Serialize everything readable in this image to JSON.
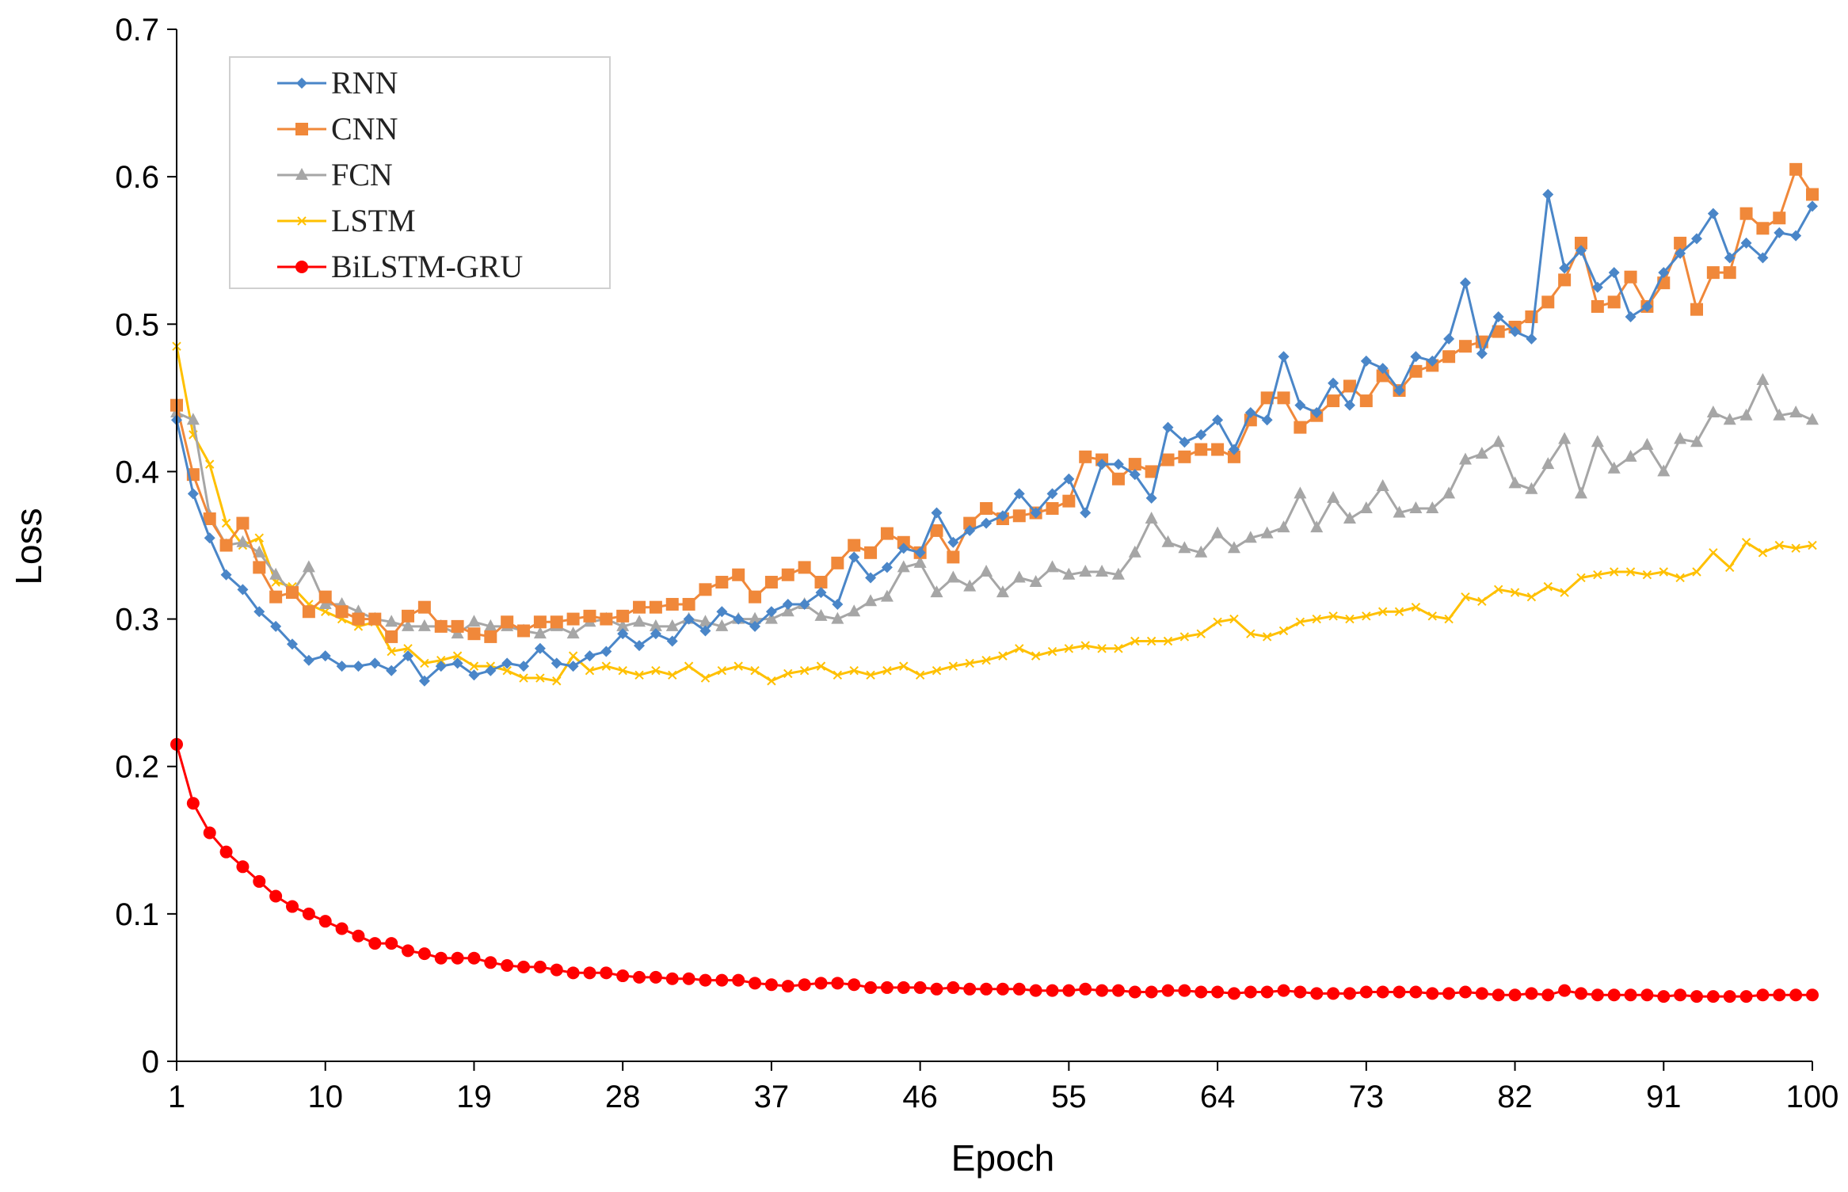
{
  "chart_data": {
    "type": "line",
    "title": "",
    "xlabel": "Epoch",
    "ylabel": "Loss",
    "xlim": [
      1,
      100
    ],
    "ylim": [
      0,
      0.7
    ],
    "x_ticks": [
      1,
      10,
      19,
      28,
      37,
      46,
      55,
      64,
      73,
      82,
      91,
      100
    ],
    "y_ticks": [
      0,
      0.1,
      0.2,
      0.3,
      0.4,
      0.5,
      0.6,
      0.7
    ],
    "y_tick_labels": [
      "0",
      "0.1",
      "0.2",
      "0.3",
      "0.4",
      "0.5",
      "0.6",
      "0.7"
    ],
    "legend_position": "top-left",
    "grid": false,
    "series": [
      {
        "name": "RNN",
        "color": "#4A86C8",
        "marker": "diamond",
        "values": [
          0.435,
          0.385,
          0.355,
          0.33,
          0.32,
          0.305,
          0.295,
          0.283,
          0.272,
          0.275,
          0.268,
          0.268,
          0.27,
          0.265,
          0.275,
          0.258,
          0.268,
          0.27,
          0.262,
          0.265,
          0.27,
          0.268,
          0.28,
          0.27,
          0.268,
          0.275,
          0.278,
          0.29,
          0.282,
          0.29,
          0.285,
          0.3,
          0.292,
          0.305,
          0.3,
          0.295,
          0.305,
          0.31,
          0.31,
          0.318,
          0.31,
          0.342,
          0.328,
          0.335,
          0.348,
          0.345,
          0.372,
          0.352,
          0.36,
          0.365,
          0.37,
          0.385,
          0.372,
          0.385,
          0.395,
          0.372,
          0.405,
          0.405,
          0.398,
          0.382,
          0.43,
          0.42,
          0.425,
          0.435,
          0.415,
          0.44,
          0.435,
          0.478,
          0.445,
          0.44,
          0.46,
          0.445,
          0.475,
          0.47,
          0.455,
          0.478,
          0.475,
          0.49,
          0.528,
          0.48,
          0.505,
          0.495,
          0.49,
          0.588,
          0.538,
          0.55,
          0.525,
          0.535,
          0.505,
          0.512,
          0.535,
          0.548,
          0.558,
          0.575,
          0.545,
          0.555,
          0.545,
          0.562,
          0.56,
          0.58
        ]
      },
      {
        "name": "CNN",
        "color": "#F0883A",
        "marker": "square",
        "values": [
          0.445,
          0.398,
          0.368,
          0.35,
          0.365,
          0.335,
          0.315,
          0.318,
          0.305,
          0.315,
          0.305,
          0.3,
          0.3,
          0.288,
          0.302,
          0.308,
          0.295,
          0.295,
          0.29,
          0.288,
          0.298,
          0.292,
          0.298,
          0.298,
          0.3,
          0.302,
          0.3,
          0.302,
          0.308,
          0.308,
          0.31,
          0.31,
          0.32,
          0.325,
          0.33,
          0.315,
          0.325,
          0.33,
          0.335,
          0.325,
          0.338,
          0.35,
          0.345,
          0.358,
          0.352,
          0.345,
          0.36,
          0.342,
          0.365,
          0.375,
          0.368,
          0.37,
          0.372,
          0.375,
          0.38,
          0.41,
          0.408,
          0.395,
          0.405,
          0.4,
          0.408,
          0.41,
          0.415,
          0.415,
          0.41,
          0.435,
          0.45,
          0.45,
          0.43,
          0.438,
          0.448,
          0.458,
          0.448,
          0.465,
          0.455,
          0.468,
          0.472,
          0.478,
          0.485,
          0.488,
          0.495,
          0.498,
          0.505,
          0.515,
          0.53,
          0.555,
          0.512,
          0.515,
          0.532,
          0.512,
          0.528,
          0.555,
          0.51,
          0.535,
          0.535,
          0.575,
          0.565,
          0.572,
          0.605,
          0.588
        ]
      },
      {
        "name": "FCN",
        "color": "#A6A6A6",
        "marker": "triangle",
        "values": [
          0.44,
          0.435,
          0.37,
          0.35,
          0.352,
          0.345,
          0.33,
          0.318,
          0.335,
          0.31,
          0.31,
          0.305,
          0.3,
          0.298,
          0.295,
          0.295,
          0.295,
          0.29,
          0.298,
          0.295,
          0.295,
          0.292,
          0.29,
          0.295,
          0.29,
          0.298,
          0.3,
          0.295,
          0.298,
          0.295,
          0.295,
          0.3,
          0.298,
          0.295,
          0.3,
          0.3,
          0.3,
          0.305,
          0.31,
          0.302,
          0.3,
          0.305,
          0.312,
          0.315,
          0.335,
          0.338,
          0.318,
          0.328,
          0.322,
          0.332,
          0.318,
          0.328,
          0.325,
          0.335,
          0.33,
          0.332,
          0.332,
          0.33,
          0.345,
          0.368,
          0.352,
          0.348,
          0.345,
          0.358,
          0.348,
          0.355,
          0.358,
          0.362,
          0.385,
          0.362,
          0.382,
          0.368,
          0.375,
          0.39,
          0.372,
          0.375,
          0.375,
          0.385,
          0.408,
          0.412,
          0.42,
          0.392,
          0.388,
          0.405,
          0.422,
          0.385,
          0.42,
          0.402,
          0.41,
          0.418,
          0.4,
          0.422,
          0.42,
          0.44,
          0.435,
          0.438,
          0.462,
          0.438,
          0.44,
          0.435
        ]
      },
      {
        "name": "LSTM",
        "color": "#FFC000",
        "marker": "x",
        "values": [
          0.485,
          0.425,
          0.405,
          0.365,
          0.35,
          0.355,
          0.325,
          0.322,
          0.31,
          0.305,
          0.3,
          0.295,
          0.298,
          0.278,
          0.28,
          0.27,
          0.272,
          0.275,
          0.268,
          0.268,
          0.265,
          0.26,
          0.26,
          0.258,
          0.275,
          0.265,
          0.268,
          0.265,
          0.262,
          0.265,
          0.262,
          0.268,
          0.26,
          0.265,
          0.268,
          0.265,
          0.258,
          0.263,
          0.265,
          0.268,
          0.262,
          0.265,
          0.262,
          0.265,
          0.268,
          0.262,
          0.265,
          0.268,
          0.27,
          0.272,
          0.275,
          0.28,
          0.275,
          0.278,
          0.28,
          0.282,
          0.28,
          0.28,
          0.285,
          0.285,
          0.285,
          0.288,
          0.29,
          0.298,
          0.3,
          0.29,
          0.288,
          0.292,
          0.298,
          0.3,
          0.302,
          0.3,
          0.302,
          0.305,
          0.305,
          0.308,
          0.302,
          0.3,
          0.315,
          0.312,
          0.32,
          0.318,
          0.315,
          0.322,
          0.318,
          0.328,
          0.33,
          0.332,
          0.332,
          0.33,
          0.332,
          0.328,
          0.332,
          0.345,
          0.335,
          0.352,
          0.345,
          0.35,
          0.348,
          0.35
        ]
      },
      {
        "name": "BiLSTM-GRU",
        "color": "#FF0000",
        "marker": "circle",
        "values": [
          0.215,
          0.175,
          0.155,
          0.142,
          0.132,
          0.122,
          0.112,
          0.105,
          0.1,
          0.095,
          0.09,
          0.085,
          0.08,
          0.08,
          0.075,
          0.073,
          0.07,
          0.07,
          0.07,
          0.067,
          0.065,
          0.064,
          0.064,
          0.062,
          0.06,
          0.06,
          0.06,
          0.058,
          0.057,
          0.057,
          0.056,
          0.056,
          0.055,
          0.055,
          0.055,
          0.053,
          0.052,
          0.051,
          0.052,
          0.053,
          0.053,
          0.052,
          0.05,
          0.05,
          0.05,
          0.05,
          0.049,
          0.05,
          0.049,
          0.049,
          0.049,
          0.049,
          0.048,
          0.048,
          0.048,
          0.049,
          0.048,
          0.048,
          0.047,
          0.047,
          0.048,
          0.048,
          0.047,
          0.047,
          0.046,
          0.047,
          0.047,
          0.048,
          0.047,
          0.046,
          0.046,
          0.046,
          0.047,
          0.047,
          0.047,
          0.047,
          0.046,
          0.046,
          0.047,
          0.046,
          0.045,
          0.045,
          0.046,
          0.045,
          0.048,
          0.046,
          0.045,
          0.045,
          0.045,
          0.045,
          0.044,
          0.045,
          0.044,
          0.044,
          0.044,
          0.044,
          0.045,
          0.045,
          0.045,
          0.045
        ]
      }
    ]
  }
}
